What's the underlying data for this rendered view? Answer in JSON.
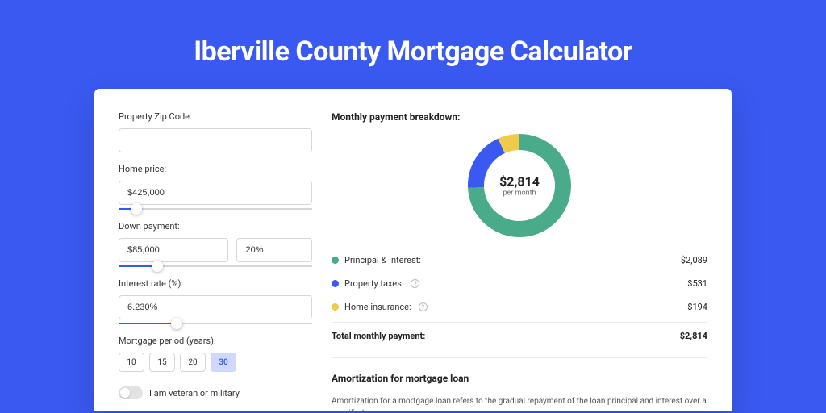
{
  "page_title": "Iberville County Mortgage Calculator",
  "form": {
    "zip_label": "Property Zip Code:",
    "zip_value": "",
    "home_price_label": "Home price:",
    "home_price_value": "$425,000",
    "home_price_slider_pct": 9,
    "down_payment_label": "Down payment:",
    "down_payment_value": "$85,000",
    "down_payment_pct_value": "20%",
    "down_payment_slider_pct": 20,
    "interest_label": "Interest rate (%):",
    "interest_value": "6.230%",
    "interest_slider_pct": 30,
    "period_label": "Mortgage period (years):",
    "period_options": [
      "10",
      "15",
      "20",
      "30"
    ],
    "period_selected": "30",
    "veteran_label": "I am veteran or military",
    "veteran_on": false
  },
  "breakdown": {
    "title": "Monthly payment breakdown:",
    "center_value": "$2,814",
    "center_sub": "per month",
    "items": [
      {
        "label": "Principal & Interest:",
        "value": "$2,089",
        "color": "#4aab8a",
        "has_info": false,
        "fraction": 0.742
      },
      {
        "label": "Property taxes:",
        "value": "$531",
        "color": "#3a59f0",
        "has_info": true,
        "fraction": 0.189
      },
      {
        "label": "Home insurance:",
        "value": "$194",
        "color": "#f1c94b",
        "has_info": true,
        "fraction": 0.069
      }
    ],
    "total_label": "Total monthly payment:",
    "total_value": "$2,814"
  },
  "amortization": {
    "title": "Amortization for mortgage loan",
    "text": "Amortization for a mortgage loan refers to the gradual repayment of the loan principal and interest over a specified"
  },
  "donut": {
    "stroke_width": 20,
    "radius": 54,
    "background_color": "#f5f5f5"
  }
}
